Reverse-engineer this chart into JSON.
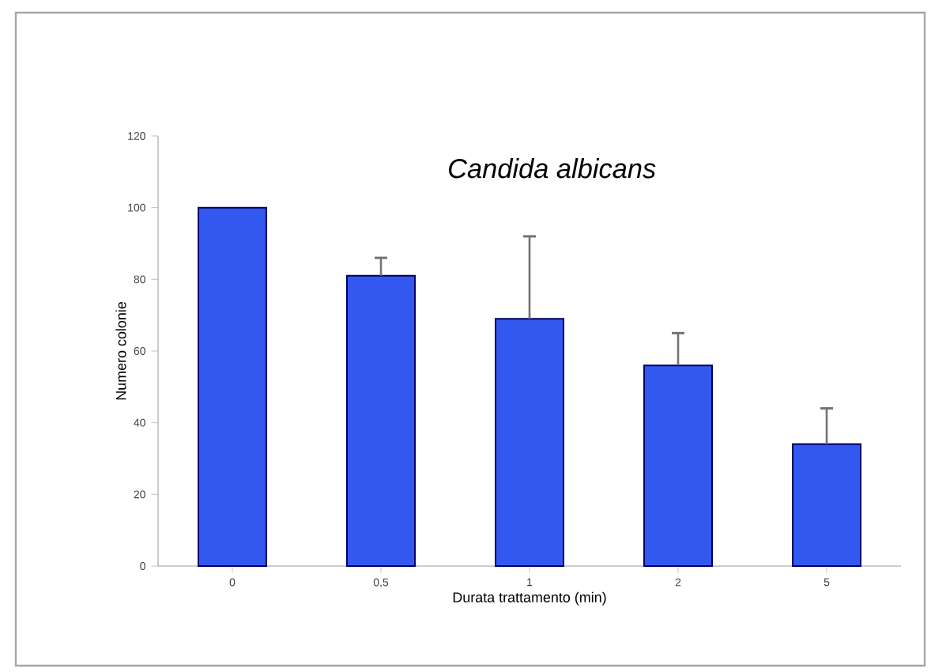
{
  "chart_data": {
    "type": "bar",
    "title": "Candida albicans",
    "xlabel": "Durata trattamento (min)",
    "ylabel": "Numero colonie",
    "categories": [
      "0",
      "0,5",
      "1",
      "2",
      "5"
    ],
    "values": [
      100,
      81,
      69,
      56,
      34
    ],
    "errors": [
      null,
      [
        81,
        86
      ],
      [
        69,
        92
      ],
      [
        56,
        65
      ],
      [
        34,
        44
      ]
    ],
    "color": "#3358f0",
    "ylim": [
      0,
      120
    ],
    "yticks": [
      0,
      20,
      40,
      60,
      80,
      100,
      120
    ]
  }
}
